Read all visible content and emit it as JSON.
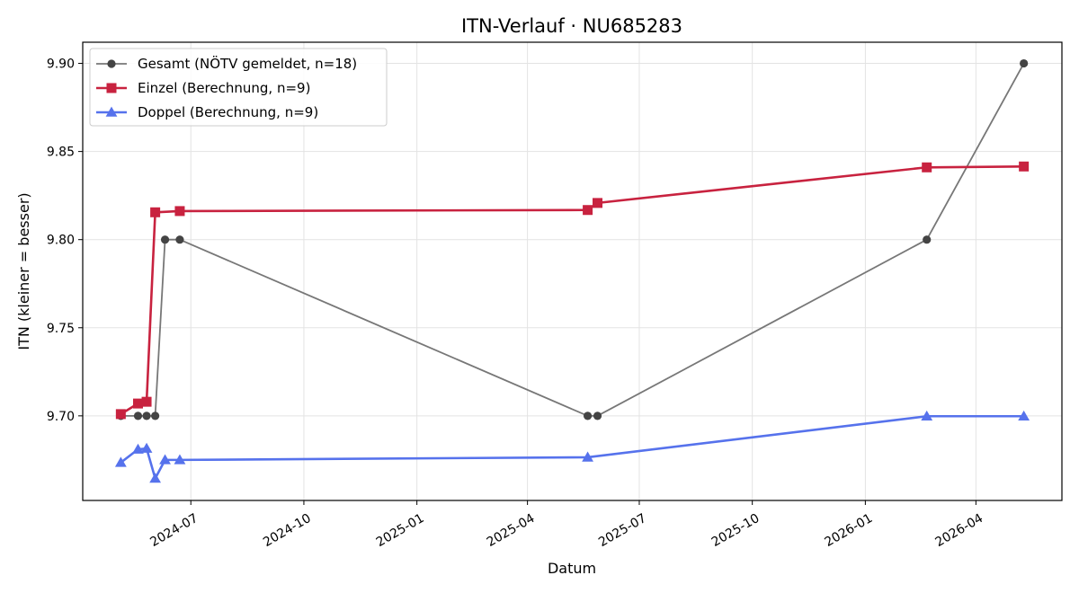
{
  "chart_data": {
    "type": "line",
    "title": "ITN-Verlauf · NU685283",
    "xlabel": "Datum",
    "ylabel": "ITN  (kleiner = besser)",
    "x_is_date": true,
    "xlim": [
      "2024-04-04",
      "2026-06-10"
    ],
    "ylim": [
      9.652,
      9.912
    ],
    "x_ticks": [
      "2024-07-01",
      "2024-10-01",
      "2025-01-01",
      "2025-04-01",
      "2025-07-01",
      "2025-10-01",
      "2026-01-01",
      "2026-04-01"
    ],
    "x_tick_labels": [
      "2024-07",
      "2024-10",
      "2025-01",
      "2025-04",
      "2025-07",
      "2025-10",
      "2026-01",
      "2026-04"
    ],
    "y_ticks": [
      9.7,
      9.75,
      9.8,
      9.85,
      9.9
    ],
    "y_tick_labels": [
      "9.70",
      "9.75",
      "9.80",
      "9.85",
      "9.90"
    ],
    "grid": true,
    "legend_position": "top-left",
    "series": [
      {
        "name": "Gesamt (NÖTV gemeldet, n=18)",
        "color": "#777777",
        "marker_color": "#444444",
        "marker": "circle",
        "line_width": 1.8,
        "points": [
          {
            "x": "2024-05-05",
            "y": 9.7
          },
          {
            "x": "2024-05-19",
            "y": 9.7
          },
          {
            "x": "2024-05-26",
            "y": 9.7
          },
          {
            "x": "2024-06-02",
            "y": 9.7
          },
          {
            "x": "2024-06-10",
            "y": 9.8
          },
          {
            "x": "2024-06-22",
            "y": 9.8
          },
          {
            "x": "2025-05-20",
            "y": 9.7
          },
          {
            "x": "2025-05-28",
            "y": 9.7
          },
          {
            "x": "2026-02-20",
            "y": 9.8
          },
          {
            "x": "2026-05-10",
            "y": 9.9
          }
        ]
      },
      {
        "name": "Einzel (Berechnung, n=9)",
        "color": "#c8223f",
        "marker_color": "#c8223f",
        "marker": "square",
        "line_width": 2.6,
        "points": [
          {
            "x": "2024-05-05",
            "y": 9.701
          },
          {
            "x": "2024-05-19",
            "y": 9.707
          },
          {
            "x": "2024-05-26",
            "y": 9.708
          },
          {
            "x": "2024-06-02",
            "y": 9.8155
          },
          {
            "x": "2024-06-22",
            "y": 9.8162
          },
          {
            "x": "2025-05-20",
            "y": 9.8168
          },
          {
            "x": "2025-05-28",
            "y": 9.8208
          },
          {
            "x": "2026-02-20",
            "y": 9.841
          },
          {
            "x": "2026-05-10",
            "y": 9.8415
          }
        ]
      },
      {
        "name": "Doppel (Berechnung, n=9)",
        "color": "#5672ec",
        "marker_color": "#5672ec",
        "marker": "triangle",
        "line_width": 2.6,
        "points": [
          {
            "x": "2024-05-05",
            "y": 9.6735
          },
          {
            "x": "2024-05-19",
            "y": 9.681
          },
          {
            "x": "2024-05-26",
            "y": 9.6815
          },
          {
            "x": "2024-06-02",
            "y": 9.6645
          },
          {
            "x": "2024-06-10",
            "y": 9.675
          },
          {
            "x": "2024-06-22",
            "y": 9.675
          },
          {
            "x": "2025-05-20",
            "y": 9.6765
          },
          {
            "x": "2026-02-20",
            "y": 9.6998
          },
          {
            "x": "2026-05-10",
            "y": 9.6998
          }
        ]
      }
    ]
  }
}
